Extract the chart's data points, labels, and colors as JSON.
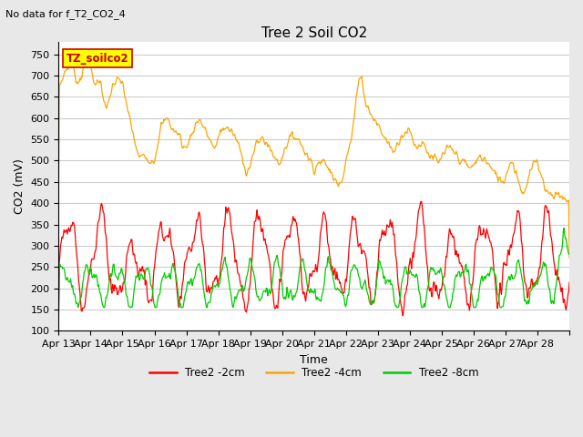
{
  "title": "Tree 2 Soil CO2",
  "subtitle": "No data for f_T2_CO2_4",
  "xlabel": "Time",
  "ylabel": "CO2 (mV)",
  "ylim": [
    100,
    780
  ],
  "yticks": [
    100,
    150,
    200,
    250,
    300,
    350,
    400,
    450,
    500,
    550,
    600,
    650,
    700,
    750
  ],
  "x_tick_labels": [
    "Apr 13",
    "Apr 14",
    "Apr 15",
    "Apr 16",
    "Apr 17",
    "Apr 18",
    "Apr 19",
    "Apr 20",
    "Apr 21",
    "Apr 22",
    "Apr 23",
    "Apr 24",
    "Apr 25",
    "Apr 26",
    "Apr 27",
    "Apr 28"
  ],
  "legend_labels": [
    "Tree2 -2cm",
    "Tree2 -4cm",
    "Tree2 -8cm"
  ],
  "line_colors": [
    "#ff0000",
    "#ffa500",
    "#00cc00"
  ],
  "bg_color": "#e8e8e8",
  "plot_bg_color": "#ffffff",
  "grid_color": "#cccccc",
  "annotation_box_facecolor": "#ffff00",
  "annotation_box_edgecolor": "#cc0000",
  "annotation_text": "TZ_soilco2",
  "annotation_text_color": "#cc0000",
  "title_fontsize": 11,
  "axis_fontsize": 9,
  "tick_fontsize": 8
}
